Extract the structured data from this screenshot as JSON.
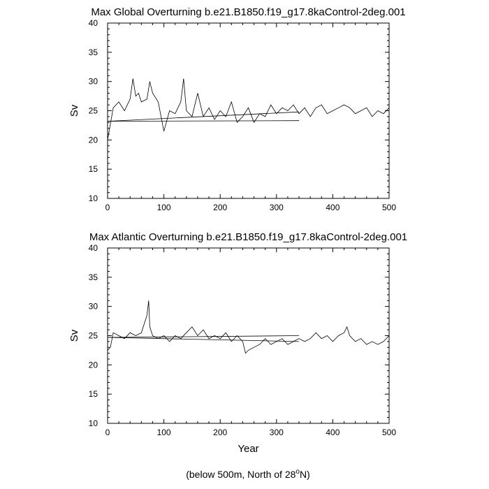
{
  "footer": {
    "text": "(below 500m, North of 28",
    "sup": "o",
    "end": "N)"
  },
  "chart_data": [
    {
      "type": "line",
      "title": "Max Global Overturning b.e21.B1850.f19_g17.8kaControl-2deg.001",
      "xlabel": "",
      "ylabel": "Sv",
      "xlim": [
        0,
        500
      ],
      "ylim": [
        10,
        40
      ],
      "xticks": [
        0,
        100,
        200,
        300,
        400,
        500
      ],
      "yticks": [
        10,
        15,
        20,
        25,
        30,
        35,
        40
      ],
      "grid": false,
      "series": [
        {
          "x": [
            0,
            10,
            20,
            30,
            40,
            45,
            50,
            55,
            60,
            70,
            75,
            80,
            90,
            100,
            110,
            120,
            130,
            135,
            140,
            150,
            160,
            170,
            180,
            190,
            200,
            210,
            220,
            230,
            240,
            250,
            260,
            270,
            280,
            290,
            300,
            310,
            320,
            330,
            340,
            350,
            360,
            370,
            380,
            390,
            400,
            410,
            420,
            430,
            440,
            450,
            460,
            470,
            480,
            490,
            500
          ],
          "values": [
            20.0,
            25.5,
            26.5,
            25.0,
            27.0,
            30.5,
            27.5,
            28.0,
            26.5,
            27.0,
            30.0,
            28.0,
            26.5,
            21.5,
            25.0,
            24.5,
            26.5,
            30.5,
            25.0,
            24.0,
            28.0,
            24.0,
            25.5,
            23.5,
            25.0,
            24.0,
            26.5,
            23.0,
            24.0,
            25.5,
            23.0,
            24.5,
            24.0,
            26.0,
            24.5,
            25.5,
            25.0,
            26.0,
            24.5,
            25.5,
            24.0,
            25.5,
            26.0,
            24.5,
            25.0,
            25.5,
            26.0,
            25.5,
            24.5,
            25.0,
            25.5,
            24.0,
            25.0,
            24.5,
            25.5
          ]
        },
        {
          "x": [
            0,
            340
          ],
          "values": [
            23.2,
            24.8
          ]
        },
        {
          "x": [
            0,
            340
          ],
          "values": [
            23.2,
            23.3
          ]
        }
      ]
    },
    {
      "type": "line",
      "title": "Max Atlantic Overturning b.e21.B1850.f19_g17.8kaControl-2deg.001",
      "xlabel": "Year",
      "ylabel": "Sv",
      "xlim": [
        0,
        500
      ],
      "ylim": [
        10,
        40
      ],
      "xticks": [
        0,
        100,
        200,
        300,
        400,
        500
      ],
      "yticks": [
        10,
        15,
        20,
        25,
        30,
        35,
        40
      ],
      "grid": false,
      "series": [
        {
          "x": [
            0,
            5,
            10,
            20,
            30,
            40,
            50,
            60,
            65,
            70,
            73,
            75,
            80,
            90,
            100,
            110,
            120,
            130,
            140,
            150,
            160,
            170,
            180,
            190,
            200,
            210,
            220,
            230,
            240,
            245,
            250,
            260,
            270,
            280,
            290,
            300,
            310,
            320,
            330,
            340,
            350,
            360,
            370,
            380,
            390,
            400,
            410,
            420,
            425,
            430,
            440,
            450,
            460,
            470,
            480,
            490,
            500
          ],
          "values": [
            22.5,
            23.0,
            25.5,
            25.0,
            24.5,
            25.5,
            25.0,
            25.5,
            27.0,
            28.5,
            31.0,
            26.5,
            25.0,
            24.5,
            25.0,
            24.0,
            25.0,
            24.5,
            25.5,
            26.5,
            25.0,
            26.0,
            24.5,
            25.0,
            24.5,
            25.5,
            24.0,
            25.0,
            24.0,
            22.0,
            22.5,
            23.0,
            23.5,
            24.5,
            23.5,
            24.0,
            24.5,
            23.5,
            24.0,
            24.5,
            24.0,
            24.5,
            25.5,
            24.5,
            25.0,
            24.0,
            25.0,
            25.5,
            26.5,
            25.0,
            24.0,
            24.5,
            23.5,
            24.0,
            23.5,
            24.0,
            25.0
          ]
        },
        {
          "x": [
            0,
            340
          ],
          "values": [
            24.7,
            24.0
          ]
        },
        {
          "x": [
            0,
            340
          ],
          "values": [
            24.7,
            25.0
          ]
        }
      ]
    }
  ]
}
